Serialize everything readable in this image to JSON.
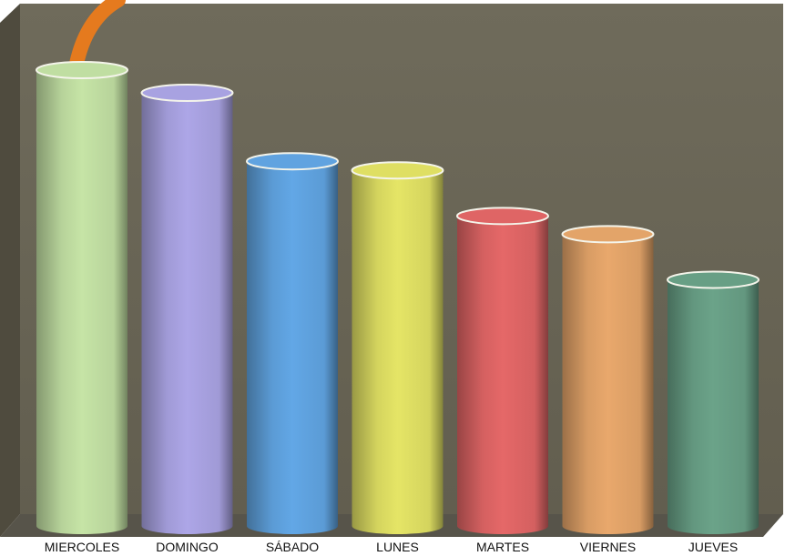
{
  "chart_data": {
    "type": "bar",
    "style": "3d-cylinder",
    "categories": [
      "MIERCOLES",
      "DOMINGO",
      "SÁBADO",
      "LUNES",
      "MARTES",
      "VIERNES",
      "JUEVES"
    ],
    "series": [
      {
        "values": [
          100,
          95,
          80,
          78,
          68,
          64,
          54
        ]
      }
    ],
    "bar_colors": [
      "#b7d39a",
      "#a09ad6",
      "#5b9bd5",
      "#d4d45e",
      "#d46060",
      "#d89c64",
      "#63977f"
    ],
    "ylim": [
      0,
      100
    ],
    "grid": false,
    "legend": "none",
    "title": "",
    "xlabel": "",
    "ylabel": ""
  },
  "colors": {
    "back_wall": "#6b6757",
    "side_wall": "#4f4b3e",
    "floor": "#5a5749",
    "accent_stroke": "#e57a1e"
  }
}
